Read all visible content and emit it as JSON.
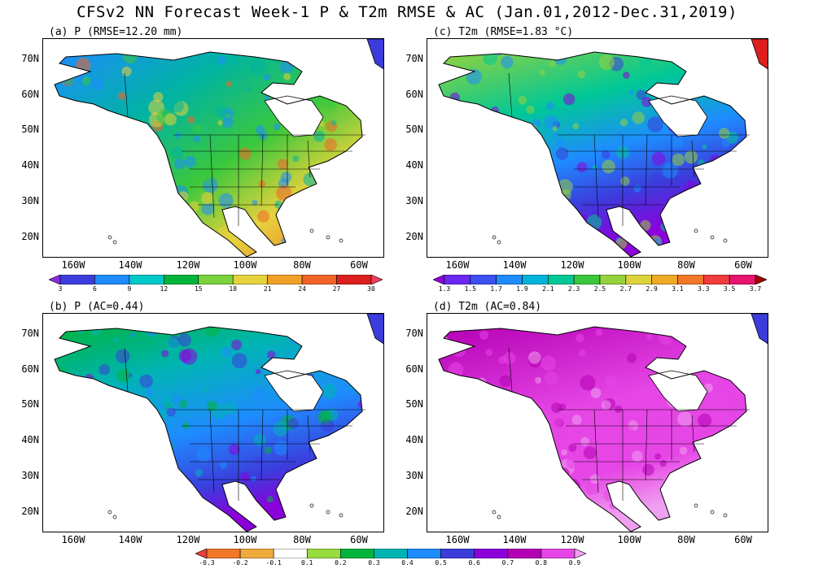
{
  "title": "CFSv2 NN Forecast Week-1 P & T2m RMSE & AC (Jan.01,2012-Dec.31,2019)",
  "panels": [
    {
      "id": "a",
      "label": "(a) P (RMSE=12.20 mm)",
      "variable": "precipitation",
      "metric": "RMSE",
      "value": 12.2,
      "units": "mm"
    },
    {
      "id": "c",
      "label": "(c) T2m (RMSE=1.83 °C)",
      "variable": "2m temperature",
      "metric": "RMSE",
      "value": 1.83,
      "units": "°C"
    },
    {
      "id": "b",
      "label": "(b) P (AC=0.44)",
      "variable": "precipitation",
      "metric": "AC",
      "value": 0.44
    },
    {
      "id": "d",
      "label": "(d) T2m (AC=0.84)",
      "variable": "2m temperature",
      "metric": "AC",
      "value": 0.84
    }
  ],
  "lat_labels": [
    "70N",
    "60N",
    "50N",
    "40N",
    "30N",
    "20N"
  ],
  "lon_labels": [
    "160W",
    "140W",
    "120W",
    "100W",
    "80W",
    "60W"
  ],
  "colorbars": {
    "precip_rmse": {
      "labels": [
        "3",
        "6",
        "9",
        "12",
        "15",
        "18",
        "21",
        "24",
        "27",
        "30"
      ],
      "colors": [
        "#8a2be2",
        "#3c3cdc",
        "#1e8cff",
        "#00c8c8",
        "#00b43c",
        "#7ad23c",
        "#e6d23c",
        "#f0a028",
        "#f06428",
        "#dc1e1e",
        "#f03c5a"
      ]
    },
    "t2m_rmse": {
      "labels": [
        "1.3",
        "1.5",
        "1.7",
        "1.9",
        "2.1",
        "2.3",
        "2.5",
        "2.7",
        "2.9",
        "3.1",
        "3.3",
        "3.5",
        "3.7"
      ],
      "colors": [
        "#8c00dc",
        "#6a28f0",
        "#3c50f0",
        "#1e8cff",
        "#00b4dc",
        "#00c896",
        "#3cc83c",
        "#96d23c",
        "#dcd23c",
        "#f0aa28",
        "#f07828",
        "#f03c3c",
        "#e6146e",
        "#a00000"
      ]
    },
    "ac": {
      "labels": [
        "-0.3",
        "-0.2",
        "-0.1",
        "0.1",
        "0.2",
        "0.3",
        "0.4",
        "0.5",
        "0.6",
        "0.7",
        "0.8",
        "0.9"
      ],
      "colors": [
        "#f03c3c",
        "#f07828",
        "#f0aa3c",
        "#ffffff",
        "#96dc3c",
        "#00b43c",
        "#00b4b4",
        "#1e8cff",
        "#3c3cdc",
        "#8c00dc",
        "#b400b4",
        "#e646e6",
        "#f0a0f0"
      ]
    }
  }
}
